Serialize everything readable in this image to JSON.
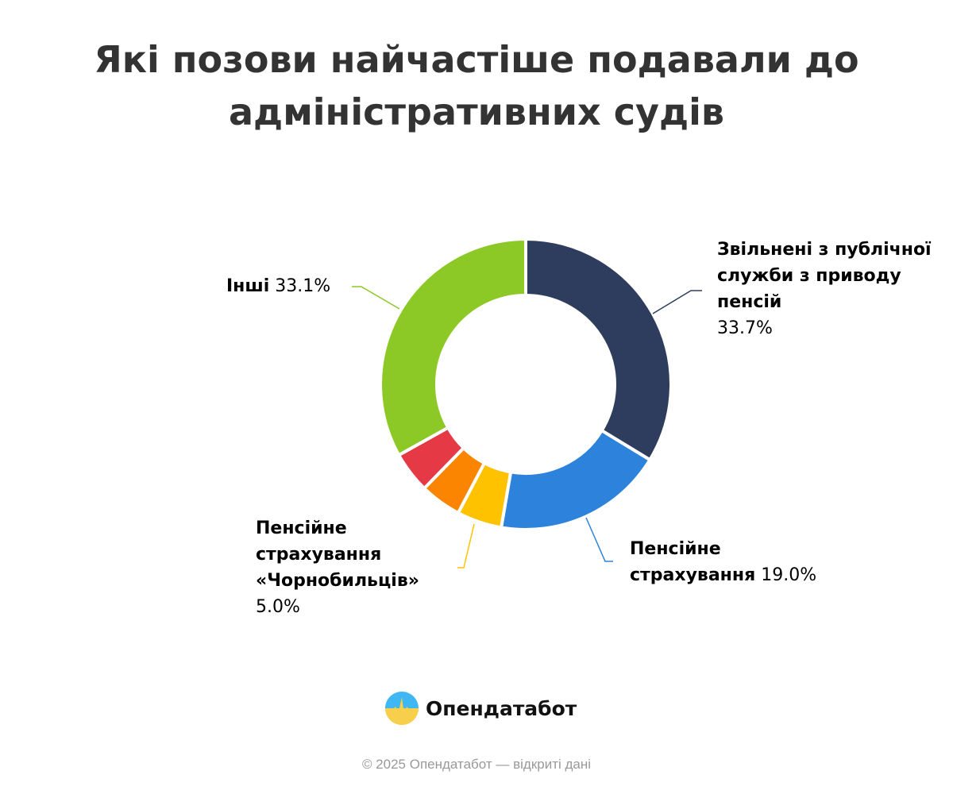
{
  "chart_data": {
    "type": "pie",
    "variant": "donut",
    "title": "Які позови найчастіше подавали до адміністративних судів",
    "slices": [
      {
        "name": "Звільнені з публічної служби з приводу пенсій",
        "value": 33.7,
        "label": "33.7%",
        "color": "#2e3d5e"
      },
      {
        "name": "Пенсійне страхування",
        "value": 19.0,
        "label": "19.0%",
        "color": "#2d82db"
      },
      {
        "name": "Пенсійне страхування «Чорнобильців»",
        "value": 5.0,
        "label": "5.0%",
        "color": "#ffc200"
      },
      {
        "name": "",
        "value": 4.6,
        "label": "",
        "color": "#fb8500"
      },
      {
        "name": "",
        "value": 4.6,
        "label": "",
        "color": "#e63946"
      },
      {
        "name": "Інші",
        "value": 33.1,
        "label": "33.1%",
        "color": "#8dc926"
      }
    ],
    "legend": "none"
  },
  "brand": {
    "name": "Опендатабот"
  },
  "footer": "© 2025 Опендатабот — відкриті дані"
}
